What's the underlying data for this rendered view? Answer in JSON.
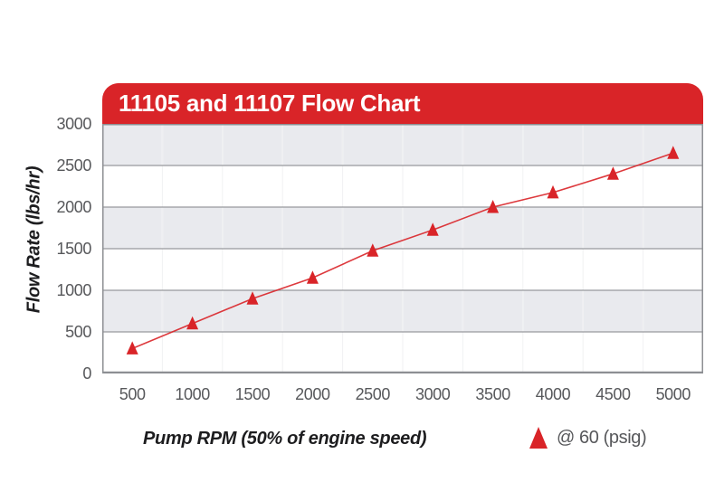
{
  "title": "11105 and 11107 Flow Chart",
  "axes": {
    "y_title": "Flow Rate (lbs/hr)",
    "x_title": "Pump RPM (50% of engine speed)"
  },
  "legend": {
    "marker": "triangle-up-icon",
    "label": "@ 60 (psig)"
  },
  "colors": {
    "red": "#D92428",
    "band_gray": "#E9EAEE",
    "grid_line": "#97999D",
    "plot_border": "#8D8F93",
    "tick_text": "#57585B",
    "title_text": "#FFFFFF",
    "axis_title_text": "#1D1D1F"
  },
  "chart_data": {
    "type": "line",
    "marker": "triangle-up",
    "title": "11105 and 11107 Flow Chart",
    "xlabel": "Pump RPM (50% of engine speed)",
    "ylabel": "Flow Rate (lbs/hr)",
    "x": [
      500,
      1000,
      1500,
      2000,
      2500,
      3000,
      3500,
      4000,
      4500,
      5000
    ],
    "series": [
      {
        "name": "@ 60 (psig)",
        "values": [
          300,
          600,
          900,
          1150,
          1475,
          1725,
          2000,
          2175,
          2400,
          2650
        ]
      }
    ],
    "ylim": [
      0,
      3000
    ],
    "y_ticks": [
      0,
      500,
      1000,
      1500,
      2000,
      2500,
      3000
    ],
    "grid": "horizontal lines every 500 with alternating gray/white bands, faint vertical column lines",
    "legend_position": "bottom-right"
  }
}
